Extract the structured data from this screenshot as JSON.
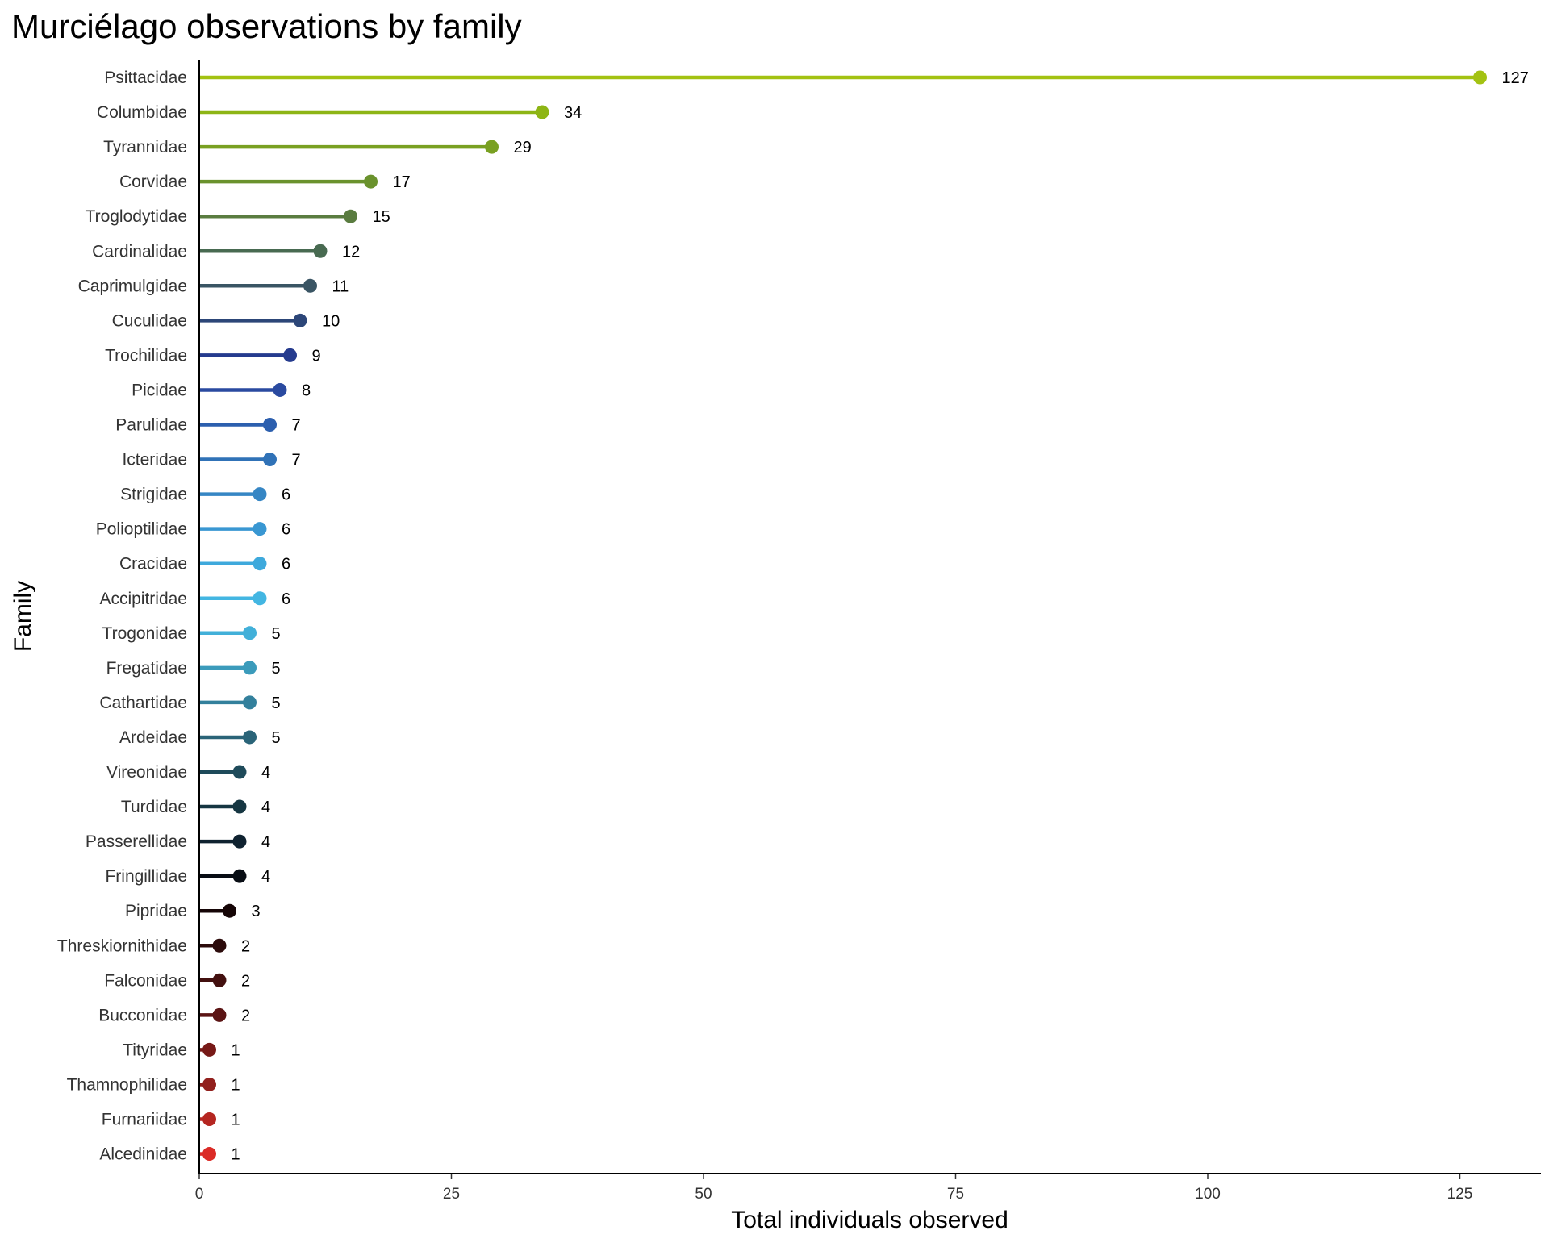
{
  "chart_data": {
    "type": "lollipop",
    "title": "Murciélago observations by family",
    "xlabel": "Total individuals observed",
    "ylabel": "Family",
    "xlim": [
      0,
      133
    ],
    "xticks": [
      0,
      25,
      50,
      75,
      100,
      125
    ],
    "grid": false,
    "legend": "none",
    "categories": [
      "Psittacidae",
      "Columbidae",
      "Tyrannidae",
      "Corvidae",
      "Troglodytidae",
      "Cardinalidae",
      "Caprimulgidae",
      "Cuculidae",
      "Trochilidae",
      "Picidae",
      "Parulidae",
      "Icteridae",
      "Strigidae",
      "Polioptilidae",
      "Cracidae",
      "Accipitridae",
      "Trogonidae",
      "Fregatidae",
      "Cathartidae",
      "Ardeidae",
      "Vireonidae",
      "Turdidae",
      "Passerellidae",
      "Fringillidae",
      "Pipridae",
      "Threskiornithidae",
      "Falconidae",
      "Bucconidae",
      "Tityridae",
      "Thamnophilidae",
      "Furnariidae",
      "Alcedinidae"
    ],
    "values": [
      127,
      34,
      29,
      17,
      15,
      12,
      11,
      10,
      9,
      8,
      7,
      7,
      6,
      6,
      6,
      6,
      5,
      5,
      5,
      5,
      4,
      4,
      4,
      4,
      3,
      2,
      2,
      2,
      1,
      1,
      1,
      1
    ],
    "colors": [
      "#a3c212",
      "#8db515",
      "#79a022",
      "#6a922d",
      "#5a7c40",
      "#486a51",
      "#3a5564",
      "#2c4678",
      "#253b8e",
      "#2a4aa0",
      "#2c5fae",
      "#3072b7",
      "#3686c4",
      "#3997d2",
      "#3ea9dc",
      "#43b6e2",
      "#42b0d9",
      "#3b9bbb",
      "#33809c",
      "#2a6478",
      "#1e4a5a",
      "#163642",
      "#0f2230",
      "#080d14",
      "#150506",
      "#2c0b0b",
      "#43100f",
      "#5b1414",
      "#771917",
      "#92201d",
      "#b52621",
      "#db2b26"
    ]
  }
}
